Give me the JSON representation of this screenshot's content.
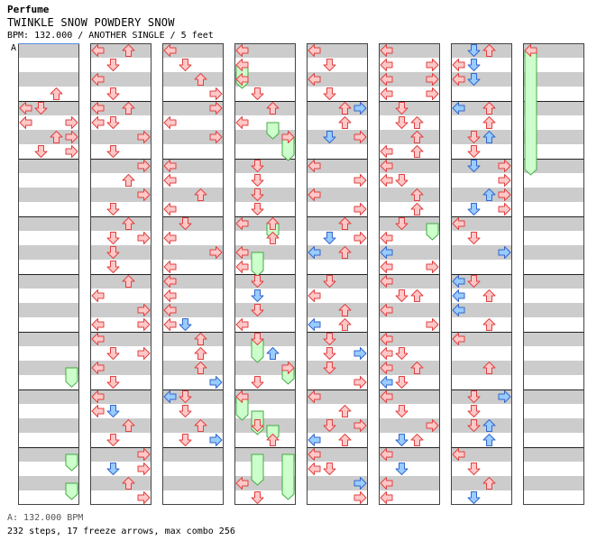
{
  "header": {
    "artist": "Perfume",
    "title": "TWINKLE SNOW POWDERY SNOW",
    "meta": "BPM: 132.000 / ANOTHER SINGLE / 5 feet",
    "bpm_marker": "A"
  },
  "footer": {
    "bpm_line": "A: 132.000 BPM",
    "stats_line": "232 steps, 17 freeze arrows, max combo 256"
  },
  "colors": {
    "stripe": "#cccccc",
    "column_border": "#444444",
    "measure_line": "#222222",
    "bpm_line": "#5b8ee0",
    "arrow_red_fill": "#ffc8c8",
    "arrow_red_stroke": "#e04040",
    "arrow_blue_fill": "#99ccff",
    "arrow_blue_stroke": "#3366cc",
    "freeze_fill": "#ccffcc",
    "freeze_stroke": "#44aa44"
  },
  "chart_data": {
    "type": "step-chart",
    "columns": 8,
    "measures_per_column": 8,
    "lanes": [
      "left",
      "down",
      "up",
      "right"
    ],
    "arrows": [
      [
        0,
        3,
        2,
        "r"
      ],
      [
        0,
        4,
        0,
        "r"
      ],
      [
        0,
        4,
        1,
        "r"
      ],
      [
        0,
        5,
        0,
        "r"
      ],
      [
        0,
        5,
        3,
        "r"
      ],
      [
        0,
        6,
        2,
        "r"
      ],
      [
        0,
        6,
        3,
        "r"
      ],
      [
        0,
        7,
        1,
        "r"
      ],
      [
        0,
        7,
        3,
        "r"
      ],
      [
        1,
        0,
        0,
        "r"
      ],
      [
        1,
        0,
        2,
        "r"
      ],
      [
        1,
        1,
        1,
        "r"
      ],
      [
        1,
        2,
        0,
        "r"
      ],
      [
        1,
        3,
        1,
        "r"
      ],
      [
        1,
        4,
        0,
        "r"
      ],
      [
        1,
        4,
        2,
        "r"
      ],
      [
        1,
        5,
        0,
        "r"
      ],
      [
        1,
        5,
        1,
        "r"
      ],
      [
        1,
        6,
        3,
        "r"
      ],
      [
        1,
        7,
        1,
        "r"
      ],
      [
        1,
        8,
        3,
        "r"
      ],
      [
        1,
        9,
        2,
        "r"
      ],
      [
        1,
        10,
        3,
        "r"
      ],
      [
        1,
        11,
        1,
        "r"
      ],
      [
        1,
        12,
        2,
        "r"
      ],
      [
        1,
        13,
        1,
        "r"
      ],
      [
        1,
        13,
        3,
        "r"
      ],
      [
        1,
        14,
        1,
        "r"
      ],
      [
        1,
        15,
        1,
        "r"
      ],
      [
        1,
        16,
        2,
        "r"
      ],
      [
        1,
        17,
        0,
        "r"
      ],
      [
        1,
        18,
        3,
        "r"
      ],
      [
        1,
        19,
        0,
        "r"
      ],
      [
        1,
        19,
        3,
        "r"
      ],
      [
        1,
        20,
        0,
        "r"
      ],
      [
        1,
        21,
        1,
        "r"
      ],
      [
        1,
        21,
        3,
        "r"
      ],
      [
        1,
        22,
        0,
        "r"
      ],
      [
        1,
        23,
        1,
        "r"
      ],
      [
        1,
        24,
        0,
        "r"
      ],
      [
        1,
        25,
        0,
        "r"
      ],
      [
        1,
        25,
        1,
        "b"
      ],
      [
        1,
        26,
        2,
        "r"
      ],
      [
        1,
        27,
        1,
        "r"
      ],
      [
        1,
        28,
        3,
        "r"
      ],
      [
        1,
        29,
        1,
        "b"
      ],
      [
        1,
        29,
        3,
        "r"
      ],
      [
        1,
        30,
        2,
        "r"
      ],
      [
        1,
        31,
        3,
        "r"
      ],
      [
        2,
        0,
        0,
        "r"
      ],
      [
        2,
        1,
        1,
        "r"
      ],
      [
        2,
        2,
        2,
        "r"
      ],
      [
        2,
        3,
        3,
        "r"
      ],
      [
        2,
        4,
        3,
        "r"
      ],
      [
        2,
        5,
        0,
        "r"
      ],
      [
        2,
        6,
        3,
        "r"
      ],
      [
        2,
        8,
        0,
        "r"
      ],
      [
        2,
        9,
        0,
        "r"
      ],
      [
        2,
        10,
        2,
        "r"
      ],
      [
        2,
        11,
        0,
        "r"
      ],
      [
        2,
        12,
        1,
        "r"
      ],
      [
        2,
        13,
        0,
        "r"
      ],
      [
        2,
        14,
        3,
        "r"
      ],
      [
        2,
        15,
        0,
        "r"
      ],
      [
        2,
        16,
        0,
        "r"
      ],
      [
        2,
        17,
        0,
        "r"
      ],
      [
        2,
        18,
        0,
        "r"
      ],
      [
        2,
        19,
        0,
        "r"
      ],
      [
        2,
        19,
        1,
        "b"
      ],
      [
        2,
        20,
        2,
        "r"
      ],
      [
        2,
        21,
        2,
        "r"
      ],
      [
        2,
        22,
        2,
        "r"
      ],
      [
        2,
        23,
        3,
        "b"
      ],
      [
        2,
        24,
        0,
        "b"
      ],
      [
        2,
        24,
        1,
        "r"
      ],
      [
        2,
        25,
        1,
        "r"
      ],
      [
        2,
        26,
        2,
        "r"
      ],
      [
        2,
        27,
        1,
        "r"
      ],
      [
        2,
        27,
        3,
        "b"
      ],
      [
        3,
        0,
        0,
        "r"
      ],
      [
        3,
        1,
        0,
        "r"
      ],
      [
        3,
        2,
        0,
        "r"
      ],
      [
        3,
        3,
        1,
        "r"
      ],
      [
        3,
        4,
        2,
        "r"
      ],
      [
        3,
        5,
        0,
        "r"
      ],
      [
        3,
        6,
        3,
        "r"
      ],
      [
        3,
        8,
        1,
        "r"
      ],
      [
        3,
        9,
        1,
        "r"
      ],
      [
        3,
        10,
        1,
        "r"
      ],
      [
        3,
        11,
        1,
        "r"
      ],
      [
        3,
        12,
        0,
        "r"
      ],
      [
        3,
        12,
        2,
        "r"
      ],
      [
        3,
        13,
        2,
        "r"
      ],
      [
        3,
        14,
        0,
        "r"
      ],
      [
        3,
        15,
        0,
        "r"
      ],
      [
        3,
        16,
        1,
        "r"
      ],
      [
        3,
        17,
        1,
        "b"
      ],
      [
        3,
        18,
        1,
        "r"
      ],
      [
        3,
        19,
        0,
        "r"
      ],
      [
        3,
        20,
        1,
        "r"
      ],
      [
        3,
        21,
        2,
        "b"
      ],
      [
        3,
        22,
        3,
        "r"
      ],
      [
        3,
        23,
        1,
        "r"
      ],
      [
        3,
        24,
        0,
        "r"
      ],
      [
        3,
        26,
        1,
        "r"
      ],
      [
        3,
        27,
        2,
        "r"
      ],
      [
        3,
        30,
        0,
        "r"
      ],
      [
        3,
        31,
        1,
        "r"
      ],
      [
        4,
        0,
        0,
        "r"
      ],
      [
        4,
        1,
        1,
        "r"
      ],
      [
        4,
        2,
        0,
        "r"
      ],
      [
        4,
        3,
        1,
        "r"
      ],
      [
        4,
        4,
        2,
        "r"
      ],
      [
        4,
        4,
        3,
        "b"
      ],
      [
        4,
        5,
        2,
        "r"
      ],
      [
        4,
        6,
        1,
        "b"
      ],
      [
        4,
        6,
        3,
        "r"
      ],
      [
        4,
        8,
        0,
        "r"
      ],
      [
        4,
        9,
        3,
        "r"
      ],
      [
        4,
        10,
        0,
        "r"
      ],
      [
        4,
        11,
        3,
        "r"
      ],
      [
        4,
        12,
        2,
        "r"
      ],
      [
        4,
        13,
        1,
        "b"
      ],
      [
        4,
        13,
        3,
        "r"
      ],
      [
        4,
        14,
        0,
        "b"
      ],
      [
        4,
        14,
        2,
        "r"
      ],
      [
        4,
        16,
        1,
        "r"
      ],
      [
        4,
        17,
        0,
        "r"
      ],
      [
        4,
        18,
        2,
        "r"
      ],
      [
        4,
        19,
        0,
        "b"
      ],
      [
        4,
        19,
        2,
        "r"
      ],
      [
        4,
        20,
        1,
        "r"
      ],
      [
        4,
        21,
        1,
        "r"
      ],
      [
        4,
        21,
        3,
        "b"
      ],
      [
        4,
        22,
        1,
        "r"
      ],
      [
        4,
        23,
        3,
        "r"
      ],
      [
        4,
        24,
        0,
        "r"
      ],
      [
        4,
        25,
        2,
        "r"
      ],
      [
        4,
        26,
        1,
        "r"
      ],
      [
        4,
        26,
        3,
        "r"
      ],
      [
        4,
        27,
        0,
        "b"
      ],
      [
        4,
        27,
        2,
        "r"
      ],
      [
        4,
        28,
        0,
        "r"
      ],
      [
        4,
        29,
        0,
        "r"
      ],
      [
        4,
        29,
        1,
        "r"
      ],
      [
        4,
        30,
        3,
        "b"
      ],
      [
        4,
        31,
        3,
        "r"
      ],
      [
        5,
        0,
        0,
        "r"
      ],
      [
        5,
        1,
        0,
        "r"
      ],
      [
        5,
        1,
        3,
        "r"
      ],
      [
        5,
        2,
        0,
        "r"
      ],
      [
        5,
        2,
        3,
        "r"
      ],
      [
        5,
        3,
        0,
        "r"
      ],
      [
        5,
        3,
        3,
        "r"
      ],
      [
        5,
        4,
        1,
        "r"
      ],
      [
        5,
        5,
        1,
        "r"
      ],
      [
        5,
        5,
        2,
        "r"
      ],
      [
        5,
        6,
        2,
        "b"
      ],
      [
        5,
        6,
        2,
        "r"
      ],
      [
        5,
        7,
        0,
        "r"
      ],
      [
        5,
        7,
        2,
        "r"
      ],
      [
        5,
        8,
        0,
        "r"
      ],
      [
        5,
        9,
        0,
        "r"
      ],
      [
        5,
        9,
        1,
        "r"
      ],
      [
        5,
        10,
        2,
        "r"
      ],
      [
        5,
        11,
        2,
        "r"
      ],
      [
        5,
        12,
        1,
        "r"
      ],
      [
        5,
        13,
        0,
        "r"
      ],
      [
        5,
        14,
        0,
        "b"
      ],
      [
        5,
        15,
        0,
        "r"
      ],
      [
        5,
        15,
        3,
        "r"
      ],
      [
        5,
        16,
        0,
        "r"
      ],
      [
        5,
        17,
        1,
        "r"
      ],
      [
        5,
        17,
        2,
        "r"
      ],
      [
        5,
        18,
        0,
        "r"
      ],
      [
        5,
        19,
        3,
        "r"
      ],
      [
        5,
        20,
        0,
        "r"
      ],
      [
        5,
        21,
        0,
        "r"
      ],
      [
        5,
        21,
        1,
        "r"
      ],
      [
        5,
        22,
        0,
        "r"
      ],
      [
        5,
        22,
        2,
        "r"
      ],
      [
        5,
        23,
        0,
        "b"
      ],
      [
        5,
        23,
        1,
        "r"
      ],
      [
        5,
        24,
        0,
        "r"
      ],
      [
        5,
        25,
        1,
        "r"
      ],
      [
        5,
        26,
        3,
        "r"
      ],
      [
        5,
        27,
        1,
        "b"
      ],
      [
        5,
        27,
        2,
        "r"
      ],
      [
        5,
        28,
        0,
        "r"
      ],
      [
        5,
        29,
        1,
        "b"
      ],
      [
        5,
        30,
        0,
        "r"
      ],
      [
        5,
        31,
        0,
        "r"
      ],
      [
        6,
        0,
        1,
        "b"
      ],
      [
        6,
        0,
        2,
        "r"
      ],
      [
        6,
        1,
        0,
        "r"
      ],
      [
        6,
        1,
        1,
        "b"
      ],
      [
        6,
        2,
        0,
        "r"
      ],
      [
        6,
        2,
        1,
        "b"
      ],
      [
        6,
        4,
        0,
        "b"
      ],
      [
        6,
        4,
        2,
        "r"
      ],
      [
        6,
        5,
        2,
        "r"
      ],
      [
        6,
        6,
        1,
        "r"
      ],
      [
        6,
        6,
        2,
        "b"
      ],
      [
        6,
        7,
        1,
        "r"
      ],
      [
        6,
        8,
        1,
        "b"
      ],
      [
        6,
        8,
        3,
        "r"
      ],
      [
        6,
        9,
        3,
        "r"
      ],
      [
        6,
        10,
        2,
        "b"
      ],
      [
        6,
        10,
        3,
        "r"
      ],
      [
        6,
        11,
        1,
        "b"
      ],
      [
        6,
        11,
        3,
        "r"
      ],
      [
        6,
        12,
        0,
        "r"
      ],
      [
        6,
        13,
        1,
        "r"
      ],
      [
        6,
        14,
        3,
        "b"
      ],
      [
        6,
        16,
        0,
        "b"
      ],
      [
        6,
        16,
        1,
        "r"
      ],
      [
        6,
        17,
        0,
        "b"
      ],
      [
        6,
        17,
        2,
        "r"
      ],
      [
        6,
        18,
        0,
        "b"
      ],
      [
        6,
        19,
        2,
        "r"
      ],
      [
        6,
        20,
        0,
        "r"
      ],
      [
        6,
        22,
        2,
        "r"
      ],
      [
        6,
        24,
        1,
        "r"
      ],
      [
        6,
        24,
        3,
        "b"
      ],
      [
        6,
        25,
        1,
        "r"
      ],
      [
        6,
        26,
        1,
        "r"
      ],
      [
        6,
        26,
        2,
        "b"
      ],
      [
        6,
        27,
        2,
        "b"
      ],
      [
        6,
        28,
        0,
        "r"
      ],
      [
        6,
        29,
        1,
        "r"
      ],
      [
        6,
        30,
        2,
        "r"
      ],
      [
        6,
        31,
        1,
        "b"
      ],
      [
        7,
        0,
        0,
        "r"
      ]
    ],
    "freezes": [
      [
        0,
        22,
        3,
        1.2
      ],
      [
        0,
        28,
        3,
        1.0
      ],
      [
        0,
        30,
        3,
        1.0
      ],
      [
        3,
        1,
        0,
        1.5
      ],
      [
        3,
        5,
        2,
        1.0
      ],
      [
        3,
        6,
        3,
        1.5
      ],
      [
        3,
        12,
        2,
        1.0
      ],
      [
        3,
        14,
        1,
        1.5
      ],
      [
        3,
        20,
        1,
        1.5
      ],
      [
        3,
        24,
        0,
        1.5
      ],
      [
        3,
        25,
        1,
        1.5
      ],
      [
        3,
        26,
        2,
        1.0
      ],
      [
        3,
        28,
        1,
        2.0
      ],
      [
        3,
        28,
        3,
        3.0
      ],
      [
        3,
        22,
        3,
        1.0
      ],
      [
        5,
        12,
        3,
        1.0
      ],
      [
        7,
        0,
        0,
        8.5
      ]
    ]
  }
}
